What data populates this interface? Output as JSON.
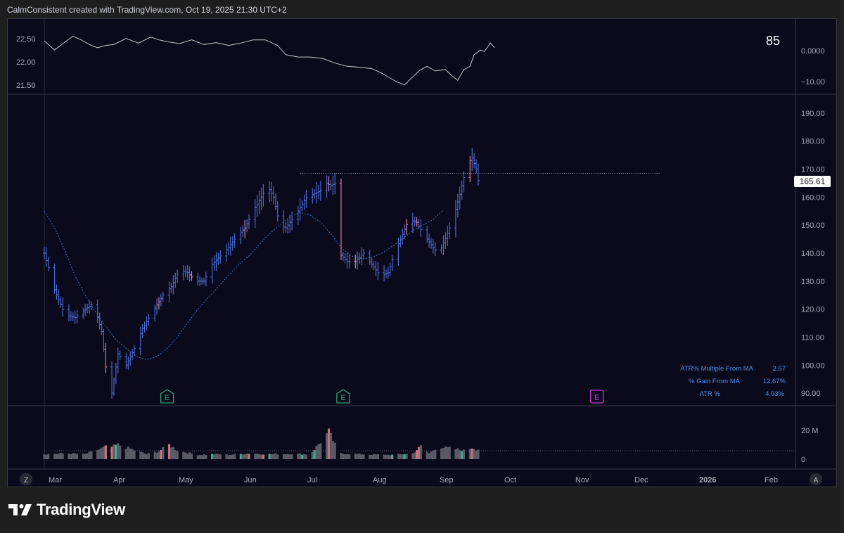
{
  "header": {
    "attribution": "CalmConsistent created with TradingView.com, Oct 19, 2025 21:30 UTC+2"
  },
  "brand": {
    "name": "TradingView",
    "logo_icon": "tradingview-logo-icon"
  },
  "colors": {
    "chart_bg": "#0b0a1d",
    "up_bar": "#4f6fd8",
    "down_bar": "#f08b96",
    "ma_line": "#2f6fc0",
    "rs_line": "#c8c8c8",
    "resistance_line": "#9a9ab0",
    "vol_up": "#4aa898",
    "vol_down": "#c8707e",
    "vol_neutral": "#5a5a66",
    "earnings_past": "#2aa37a",
    "earnings_future": "#c43ad0",
    "info_text": "#4a8fe8"
  },
  "top_pane": {
    "badge": "85",
    "left_ticks": [
      "22.50",
      "22.00",
      "21.50"
    ],
    "right_ticks": [
      "0.0000",
      "−10.00"
    ]
  },
  "price_axis": {
    "ticks": [
      "190.00",
      "180.00",
      "170.00",
      "160.00",
      "150.00",
      "140.00",
      "130.00",
      "120.00",
      "110.00",
      "100.00",
      "90.00"
    ],
    "last_price_label": "165.61"
  },
  "volume_axis": {
    "ticks": [
      "20 M",
      "0"
    ]
  },
  "time_axis": {
    "labels": [
      "Mar",
      "Apr",
      "May",
      "Jun",
      "Jul",
      "Aug",
      "Sep",
      "Oct",
      "Nov",
      "Dec",
      "2026",
      "Feb"
    ],
    "left_button": "Z",
    "right_button": "A"
  },
  "earnings_markers": [
    {
      "label": "E",
      "status": "past"
    },
    {
      "label": "E",
      "status": "past"
    },
    {
      "label": "E",
      "status": "upcoming"
    }
  ],
  "info_table": [
    {
      "label": "ATR% Multiple From MA",
      "value": "2.57"
    },
    {
      "label": "% Gain From MA",
      "value": "12.67%"
    },
    {
      "label": "ATR %",
      "value": "4.93%"
    }
  ],
  "chart_data": {
    "type": "ohlc",
    "x_axis": {
      "start": "2025-02-26",
      "end": "2026-02-28"
    },
    "price_range": [
      86,
      196
    ],
    "resistance_level": 168.5,
    "last_price": 165.61,
    "ma_series": [
      [
        0,
        155
      ],
      [
        5,
        149
      ],
      [
        10,
        141
      ],
      [
        15,
        132
      ],
      [
        20,
        125
      ],
      [
        25,
        119
      ],
      [
        30,
        114
      ],
      [
        35,
        109
      ],
      [
        40,
        106
      ],
      [
        45,
        103
      ],
      [
        50,
        102
      ],
      [
        55,
        103
      ],
      [
        60,
        106
      ],
      [
        65,
        110
      ],
      [
        70,
        115
      ],
      [
        75,
        120
      ],
      [
        80,
        124
      ],
      [
        85,
        128
      ],
      [
        90,
        132
      ],
      [
        95,
        136
      ],
      [
        100,
        139
      ],
      [
        105,
        143
      ],
      [
        110,
        147
      ],
      [
        115,
        150
      ],
      [
        120,
        153
      ],
      [
        125,
        154.5
      ],
      [
        130,
        153.5
      ],
      [
        135,
        151
      ],
      [
        140,
        147
      ],
      [
        145,
        142
      ],
      [
        150,
        139
      ],
      [
        155,
        138
      ],
      [
        160,
        138.5
      ],
      [
        165,
        140
      ],
      [
        170,
        142.5
      ],
      [
        175,
        145
      ],
      [
        180,
        148
      ],
      [
        185,
        150
      ],
      [
        190,
        152
      ],
      [
        195,
        155.5
      ]
    ],
    "price_path": [
      [
        0,
        140
      ],
      [
        5,
        127
      ],
      [
        10,
        118
      ],
      [
        15,
        117
      ],
      [
        20,
        120
      ],
      [
        24,
        122
      ],
      [
        28,
        112
      ],
      [
        31,
        93
      ],
      [
        33,
        90
      ],
      [
        36,
        104
      ],
      [
        40,
        100
      ],
      [
        44,
        106
      ],
      [
        48,
        113
      ],
      [
        52,
        118
      ],
      [
        58,
        125
      ],
      [
        62,
        128
      ],
      [
        66,
        134
      ],
      [
        70,
        133
      ],
      [
        74,
        130
      ],
      [
        78,
        130
      ],
      [
        82,
        136
      ],
      [
        86,
        139
      ],
      [
        90,
        142
      ],
      [
        94,
        146
      ],
      [
        98,
        149
      ],
      [
        102,
        155
      ],
      [
        106,
        160
      ],
      [
        109,
        164
      ],
      [
        112,
        160
      ],
      [
        115,
        150
      ],
      [
        118,
        149
      ],
      [
        121,
        152
      ],
      [
        124,
        155
      ],
      [
        128,
        160
      ],
      [
        131,
        161
      ],
      [
        134,
        162
      ],
      [
        136,
        163
      ],
      [
        138,
        165
      ],
      [
        140,
        164
      ],
      [
        142,
        165
      ],
      [
        144,
        140
      ],
      [
        148,
        137
      ],
      [
        152,
        137
      ],
      [
        156,
        140
      ],
      [
        160,
        136
      ],
      [
        164,
        132
      ],
      [
        168,
        133
      ],
      [
        171,
        140
      ],
      [
        174,
        145
      ],
      [
        178,
        152
      ],
      [
        182,
        151
      ],
      [
        185,
        147
      ],
      [
        188,
        144
      ],
      [
        191,
        141
      ],
      [
        194,
        142
      ],
      [
        197,
        147
      ],
      [
        200,
        153
      ],
      [
        203,
        161
      ],
      [
        205,
        167
      ],
      [
        207,
        172
      ],
      [
        209,
        174
      ],
      [
        211,
        170
      ],
      [
        212,
        166
      ]
    ],
    "red_bar_days": [
      30,
      32,
      56,
      72,
      98,
      123,
      139,
      145,
      152,
      177,
      182,
      208
    ],
    "volume_million": [
      [
        0,
        3.5
      ],
      [
        10,
        4
      ],
      [
        20,
        3.5
      ],
      [
        31,
        9
      ],
      [
        33,
        8.5
      ],
      [
        36,
        10
      ],
      [
        50,
        3.5
      ],
      [
        56,
        5.5
      ],
      [
        61,
        10
      ],
      [
        65,
        6
      ],
      [
        75,
        3
      ],
      [
        85,
        3.5
      ],
      [
        90,
        3
      ],
      [
        100,
        4
      ],
      [
        110,
        3.5
      ],
      [
        120,
        3.8
      ],
      [
        130,
        3.3
      ],
      [
        139,
        19
      ],
      [
        144,
        4
      ],
      [
        160,
        3.2
      ],
      [
        170,
        3
      ],
      [
        180,
        4
      ],
      [
        184,
        9
      ],
      [
        188,
        4
      ],
      [
        192,
        8.5
      ],
      [
        199,
        7.5
      ],
      [
        205,
        6
      ],
      [
        209,
        8
      ],
      [
        211,
        7
      ]
    ],
    "volume_colored_days": {
      "up": [
        31,
        35,
        82,
        96,
        110,
        126,
        132,
        170,
        176,
        200,
        204
      ],
      "down": [
        30,
        32,
        33,
        57,
        61,
        100,
        107,
        139,
        182,
        183,
        209
      ]
    },
    "rs_line": [
      [
        0,
        22.5
      ],
      [
        5,
        22.3
      ],
      [
        10,
        22.47
      ],
      [
        14,
        22.6
      ],
      [
        18,
        22.52
      ],
      [
        22,
        22.42
      ],
      [
        26,
        22.35
      ],
      [
        30,
        22.4
      ],
      [
        34,
        22.42
      ],
      [
        40,
        22.55
      ],
      [
        46,
        22.45
      ],
      [
        52,
        22.58
      ],
      [
        56,
        22.52
      ],
      [
        60,
        22.48
      ],
      [
        66,
        22.44
      ],
      [
        72,
        22.52
      ],
      [
        78,
        22.42
      ],
      [
        84,
        22.46
      ],
      [
        90,
        22.4
      ],
      [
        96,
        22.45
      ],
      [
        102,
        22.52
      ],
      [
        108,
        22.52
      ],
      [
        114,
        22.4
      ],
      [
        118,
        22.2
      ],
      [
        124,
        22.15
      ],
      [
        130,
        22.15
      ],
      [
        136,
        22.12
      ],
      [
        142,
        22.02
      ],
      [
        148,
        21.95
      ],
      [
        154,
        21.93
      ],
      [
        160,
        21.9
      ],
      [
        165,
        21.8
      ],
      [
        168,
        21.72
      ],
      [
        172,
        21.62
      ],
      [
        176,
        21.55
      ],
      [
        179,
        21.68
      ],
      [
        183,
        21.85
      ],
      [
        187,
        21.95
      ],
      [
        191,
        21.85
      ],
      [
        196,
        21.88
      ],
      [
        199,
        21.75
      ],
      [
        202,
        21.65
      ],
      [
        205,
        21.88
      ],
      [
        208,
        21.95
      ],
      [
        210,
        22.2
      ],
      [
        213,
        22.3
      ],
      [
        215,
        22.27
      ],
      [
        218,
        22.45
      ],
      [
        220,
        22.35
      ]
    ]
  }
}
